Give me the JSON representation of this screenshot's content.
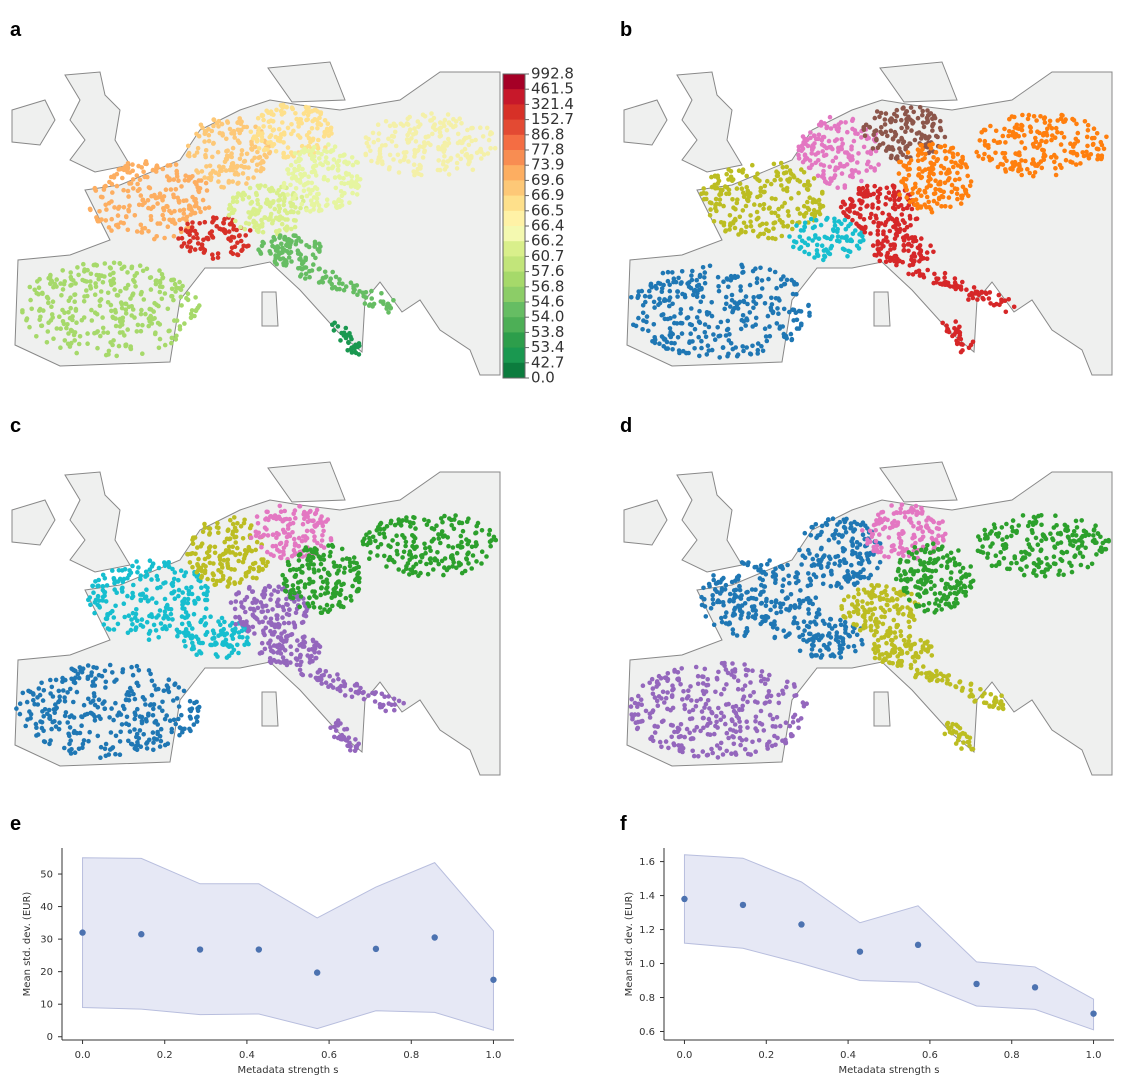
{
  "panel_labels": [
    "a",
    "b",
    "c",
    "d",
    "e",
    "f"
  ],
  "colorbar": {
    "labels": [
      "992.8",
      "461.5",
      "321.4",
      "152.7",
      "86.8",
      "77.8",
      "73.9",
      "69.6",
      "66.9",
      "66.5",
      "66.4",
      "66.2",
      "60.7",
      "57.6",
      "56.8",
      "54.6",
      "54.0",
      "53.8",
      "53.4",
      "42.7",
      "0.0"
    ]
  },
  "chart_data": [
    {
      "type": "scatter",
      "x_label": "Metadata strength s",
      "y_label": "Mean std. dev. (EUR)",
      "x": [
        0,
        0.143,
        0.286,
        0.429,
        0.571,
        0.714,
        0.857,
        1.0
      ],
      "values": [
        32,
        31.5,
        26.8,
        26.8,
        19.7,
        27,
        30.5,
        17.5
      ],
      "upper": [
        55,
        54.8,
        47,
        47,
        36.5,
        46,
        53.5,
        32.5
      ],
      "lower": [
        9,
        8.5,
        6.8,
        7,
        2.5,
        8,
        7.5,
        2
      ],
      "color": "#4c72b0",
      "band_color": "#e6e8f5",
      "xlim": [
        -0.05,
        1.05
      ],
      "ylim": [
        -1,
        58
      ],
      "xticks": [
        {
          "value": 0,
          "label": "0.0"
        },
        0.2,
        0.4,
        0.6,
        0.8,
        {
          "value": 1,
          "label": "1.0"
        }
      ],
      "yticks": [
        0,
        10,
        20,
        30,
        40,
        50
      ]
    },
    {
      "type": "scatter",
      "x_label": "Metadata strength s",
      "y_label": "Mean std. dev. (EUR)",
      "x": [
        0,
        0.143,
        0.286,
        0.429,
        0.571,
        0.714,
        0.857,
        1.0
      ],
      "values": [
        1.38,
        1.345,
        1.23,
        1.07,
        1.11,
        0.88,
        0.86,
        0.705
      ],
      "upper": [
        1.64,
        1.62,
        1.48,
        1.24,
        1.34,
        1.01,
        0.98,
        0.79
      ],
      "lower": [
        1.12,
        1.09,
        1.0,
        0.9,
        0.89,
        0.75,
        0.73,
        0.61
      ],
      "color": "#4c72b0",
      "band_color": "#e6e8f5",
      "xlim": [
        -0.05,
        1.05
      ],
      "ylim": [
        0.55,
        1.68
      ],
      "xticks": [
        {
          "value": 0,
          "label": "0.0"
        },
        0.2,
        0.4,
        0.6,
        0.8,
        {
          "value": 1,
          "label": "1.0"
        }
      ],
      "yticks": [
        0.6,
        0.8,
        {
          "value": 1,
          "label": "1.0"
        },
        1.2,
        1.4,
        1.6
      ]
    }
  ]
}
